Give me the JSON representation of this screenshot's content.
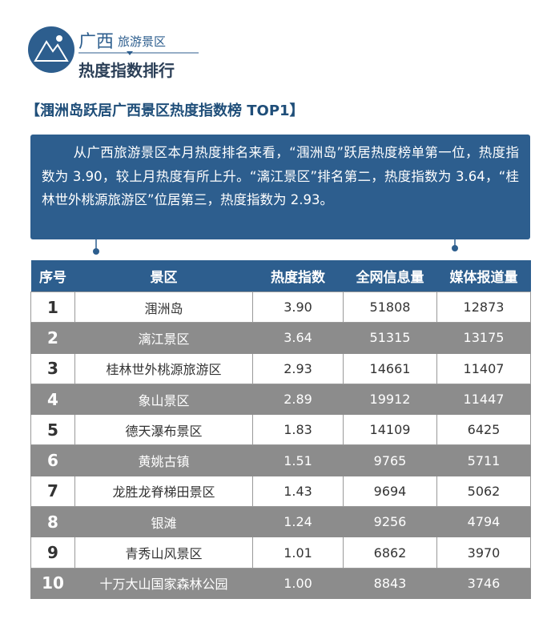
{
  "header": {
    "title_main": "广西",
    "title_sub": "旅游景区",
    "subtitle": "热度指数排行"
  },
  "section_title": "【涠洲岛跃居广西景区热度指数榜 TOP1】",
  "summary": "从广西旅游景区本月热度排名来看，“涠洲岛”跃居热度榜单第一位，热度指数为 3.90，较上月热度有所上升。“漓江景区”排名第二，热度指数为 3.64，“桂林世外桃源旅游区”位居第三，热度指数为 2.93。",
  "table": {
    "columns": [
      "序号",
      "景区",
      "热度指数",
      "全网信息量",
      "媒体报道量"
    ],
    "rows": [
      [
        "1",
        "涠洲岛",
        "3.90",
        "51808",
        "12873"
      ],
      [
        "2",
        "漓江景区",
        "3.64",
        "51315",
        "13175"
      ],
      [
        "3",
        "桂林世外桃源旅游区",
        "2.93",
        "14661",
        "11407"
      ],
      [
        "4",
        "象山景区",
        "2.89",
        "19912",
        "11447"
      ],
      [
        "5",
        "德天瀑布景区",
        "1.83",
        "14109",
        "6425"
      ],
      [
        "6",
        "黄姚古镇",
        "1.51",
        "9765",
        "5711"
      ],
      [
        "7",
        "龙胜龙脊梯田景区",
        "1.43",
        "9694",
        "5062"
      ],
      [
        "8",
        "银滩",
        "1.24",
        "9256",
        "4794"
      ],
      [
        "9",
        "青秀山风景区",
        "1.01",
        "6862",
        "3970"
      ],
      [
        "10",
        "十万大山国家森林公园",
        "1.00",
        "8843",
        "3746"
      ]
    ]
  }
}
